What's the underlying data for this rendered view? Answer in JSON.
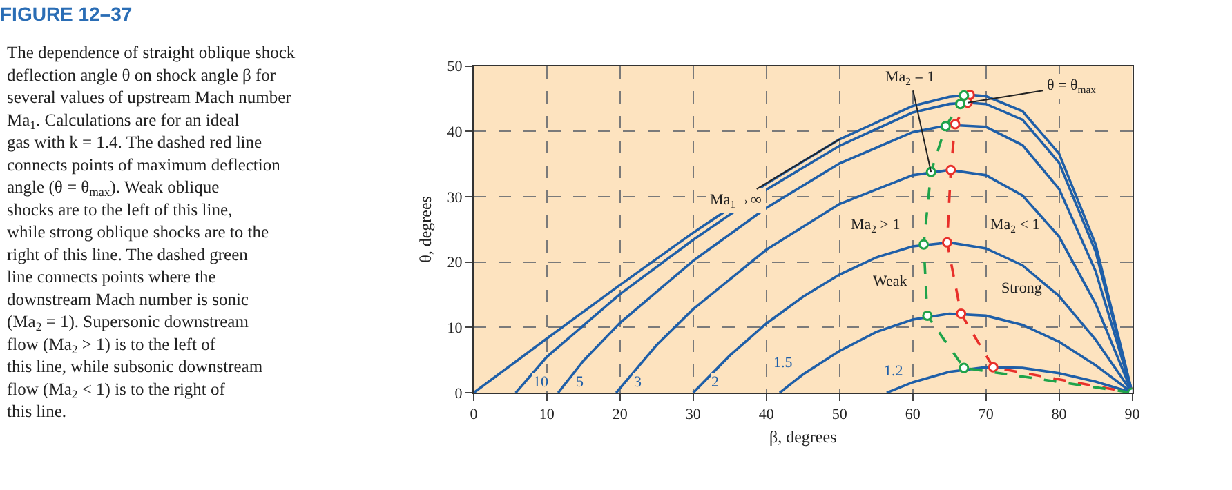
{
  "chart_data": {
    "type": "line",
    "title": "FIGURE 12–37",
    "xlabel": "β, degrees",
    "ylabel": "θ, degrees",
    "xlim": [
      0,
      90
    ],
    "ylim": [
      0,
      50
    ],
    "xticks": [
      0,
      10,
      20,
      30,
      40,
      50,
      60,
      70,
      80,
      90
    ],
    "yticks": [
      0,
      10,
      20,
      30,
      40,
      50
    ],
    "grid": true,
    "legend": false,
    "marker": "none",
    "line_style": "solid",
    "series": [
      {
        "color": "#1f5fa8",
        "x": [
          0,
          10,
          20,
          30,
          40,
          50,
          60,
          65,
          67.8,
          70,
          75,
          80,
          85,
          90
        ],
        "values": [
          0,
          8.3,
          16.5,
          24.5,
          32.0,
          38.8,
          43.9,
          45.3,
          45.6,
          45.4,
          43.1,
          36.6,
          22.7,
          0
        ]
      },
      {
        "name": "10",
        "color": "#1f5fa8",
        "x": [
          5.74,
          10,
          20,
          30,
          40,
          50,
          60,
          65,
          67.5,
          70,
          75,
          80,
          85,
          90
        ],
        "values": [
          0,
          5.5,
          15.1,
          23.4,
          31.1,
          37.8,
          42.9,
          44.2,
          44.4,
          44.2,
          41.8,
          35.2,
          21.6,
          0
        ]
      },
      {
        "name": "5",
        "color": "#1f5fa8",
        "x": [
          11.54,
          15,
          20,
          30,
          40,
          50,
          60,
          65,
          70,
          75,
          80,
          85,
          90
        ],
        "values": [
          0,
          4.9,
          10.7,
          20.2,
          28.3,
          35.1,
          39.9,
          41.0,
          40.7,
          37.9,
          31.2,
          18.6,
          0
        ]
      },
      {
        "name": "3",
        "color": "#1f5fa8",
        "x": [
          19.47,
          25,
          30,
          40,
          50,
          60,
          65,
          70,
          75,
          80,
          85,
          90
        ],
        "values": [
          0,
          7.3,
          12.8,
          21.9,
          28.9,
          33.3,
          34.1,
          33.3,
          30.2,
          23.9,
          13.6,
          0
        ]
      },
      {
        "name": "2",
        "color": "#1f5fa8",
        "x": [
          30,
          35,
          40,
          45,
          50,
          55,
          60,
          65,
          70,
          75,
          80,
          85,
          90
        ],
        "values": [
          0,
          5.7,
          10.6,
          14.7,
          18.1,
          20.7,
          22.4,
          23.0,
          22.1,
          19.5,
          14.8,
          8.1,
          0
        ]
      },
      {
        "name": "1.5",
        "color": "#1f5fa8",
        "x": [
          41.81,
          45,
          50,
          55,
          60,
          65,
          70,
          75,
          80,
          85,
          90
        ],
        "values": [
          0,
          2.8,
          6.4,
          9.3,
          11.2,
          12.1,
          11.8,
          10.4,
          7.8,
          4.2,
          0
        ]
      },
      {
        "name": "1.2",
        "color": "#1f5fa8",
        "x": [
          56.44,
          60,
          65,
          70,
          75,
          80,
          85,
          90
        ],
        "values": [
          0,
          1.6,
          3.2,
          3.9,
          3.8,
          3.0,
          1.7,
          0
        ]
      },
      {
        "color": "#e8302a",
        "line_style": "dashed",
        "marker": "circle",
        "x": [
          67.8,
          67.5,
          65.8,
          65.2,
          64.7,
          66.6,
          71,
          90
        ],
        "values": [
          45.6,
          44.4,
          41.1,
          34.1,
          23.0,
          12.1,
          3.9,
          0
        ]
      },
      {
        "color": "#1fa34a",
        "line_style": "dashed",
        "marker": "circle",
        "x": [
          67,
          66.5,
          64.5,
          62.5,
          61.5,
          62,
          67,
          90
        ],
        "values": [
          45.5,
          44.2,
          40.8,
          33.8,
          22.7,
          11.8,
          3.8,
          0
        ]
      }
    ],
    "annotations": [
      "The dependence of straight oblique shock deflection angle θ on shock angle β for several values of upstream Mach number Ma$_{1}$. Calculations are for an ideal gas with k = 1.4. The dashed red line connects points of maximum deflection angle (θ = θ$_{max}$). Weak oblique shocks are to the left of this line, while strong oblique shocks are to the right of this line. The dashed green line connects points where the downstream Mach number is sonic (Ma$_{2}$ = 1). Supersonic downstream flow (Ma$_{2}$ > 1) is to the left of this line, while subsonic downstream flow (Ma$_{2}$ < 1) is to the right of this line.",
      {
        "text": "Ma$_{2}$ = 1",
        "x": 62.5,
        "y": 33.8
      },
      {
        "text": "θ = θ$_{max}$",
        "x": 67.5,
        "y": 44.4
      },
      {
        "text": "Ma$_{1}$→∞",
        "x": 50,
        "y": 38.8
      },
      "Ma$_{2}$ > 1",
      "Ma$_{2}$ < 1",
      "Weak",
      "Strong"
    ]
  }
}
